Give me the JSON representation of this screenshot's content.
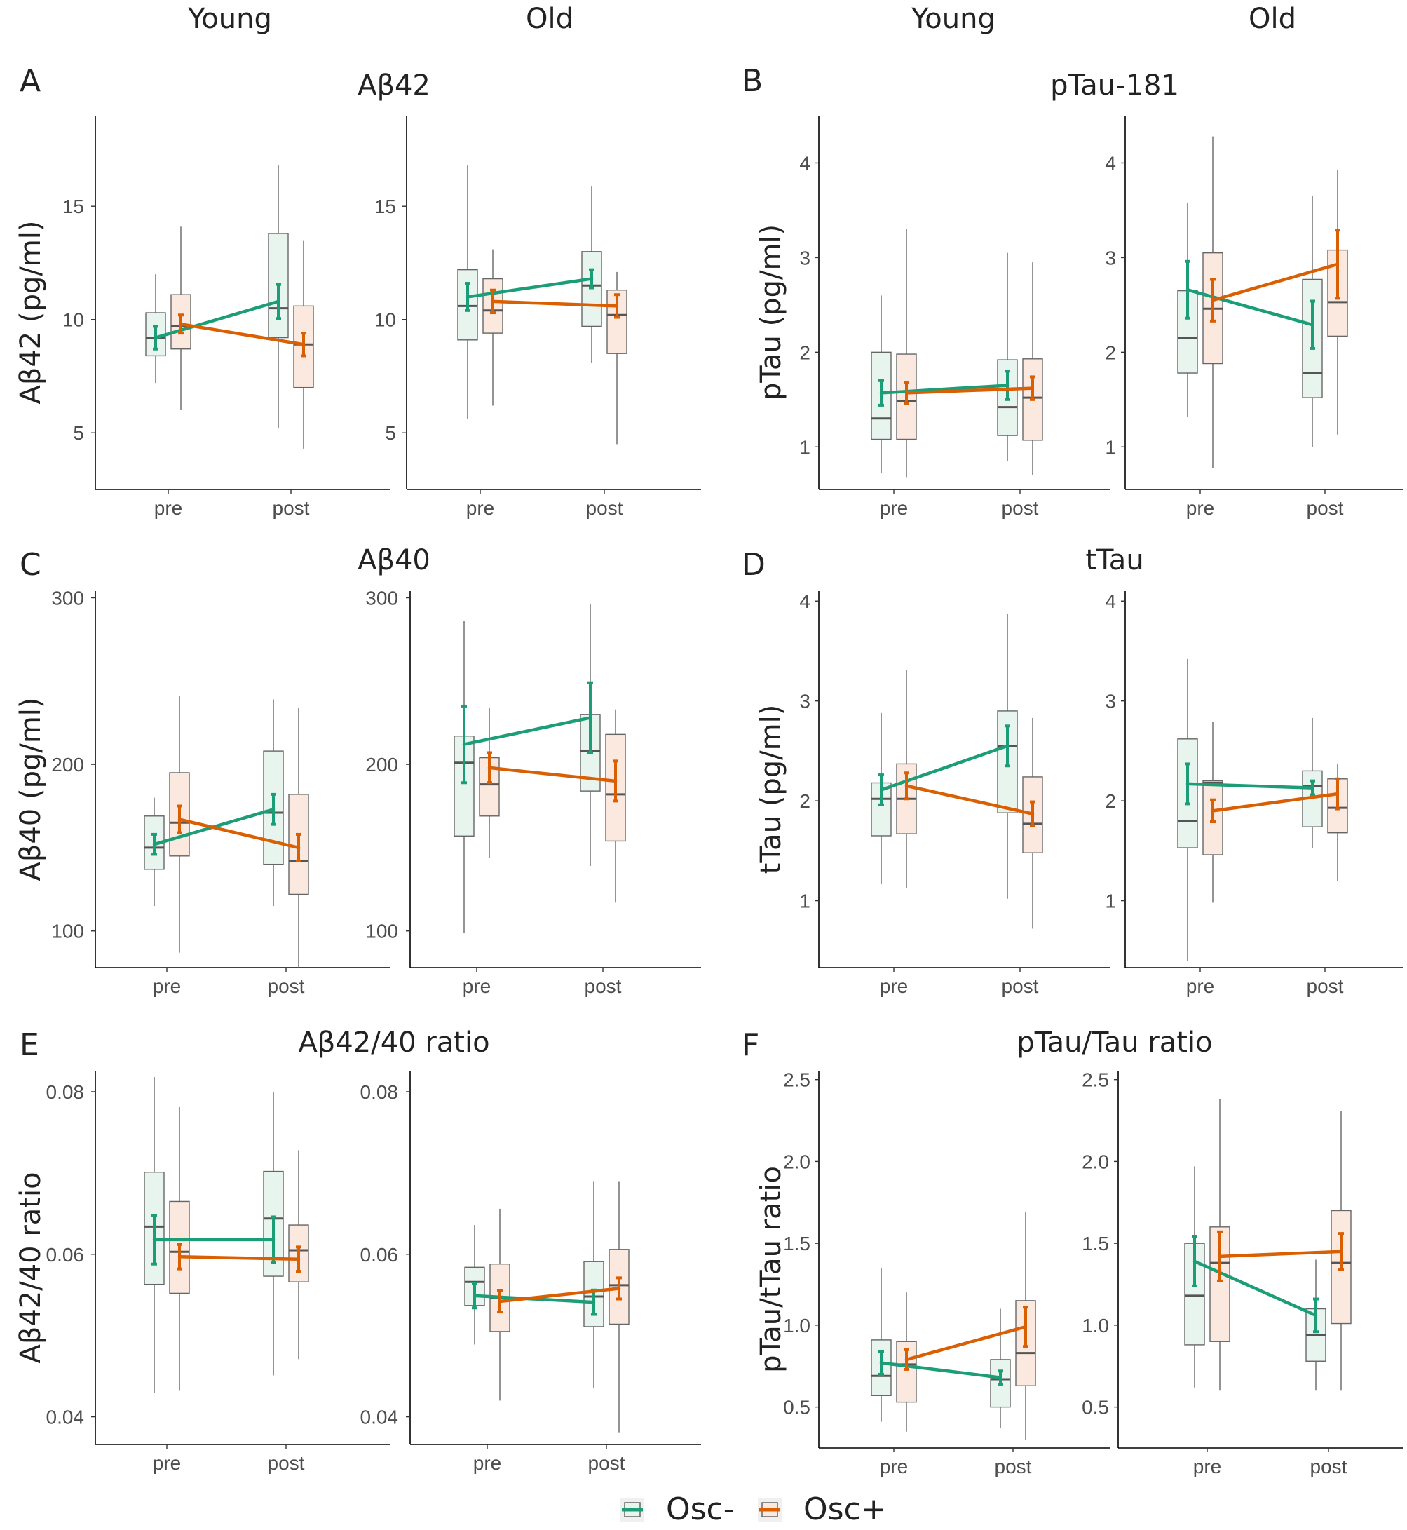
{
  "column_headers": [
    "Young",
    "Old",
    "Young",
    "Old"
  ],
  "colors": {
    "osc_minus": "#1b9e77",
    "osc_plus": "#d95f02",
    "box_minus_fill": "#e8f5ef",
    "box_plus_fill": "#fbe9df",
    "axis": "#000000",
    "box_stroke": "#666666"
  },
  "legend": [
    {
      "label": "Osc-",
      "color": "#1b9e77"
    },
    {
      "label": "Osc+",
      "color": "#d95f02"
    }
  ],
  "chart_data": [
    {
      "letter": "A",
      "title": "Aβ42",
      "type": "box+line",
      "ylabel": "Aβ42 (pg/ml)",
      "ylim": [
        2.5,
        19
      ],
      "yticks": [
        5,
        10,
        15
      ],
      "categories": [
        "pre",
        "post"
      ],
      "panels": [
        {
          "group": "Young",
          "boxes": {
            "Osc-": [
              {
                "lo": 7.2,
                "q1": 8.4,
                "med": 9.2,
                "q3": 10.3,
                "hi": 12.0
              },
              {
                "lo": 5.2,
                "q1": 9.2,
                "med": 10.5,
                "q3": 13.8,
                "hi": 16.8
              }
            ],
            "Osc+": [
              {
                "lo": 6.0,
                "q1": 8.7,
                "med": 9.7,
                "q3": 11.1,
                "hi": 14.1
              },
              {
                "lo": 4.3,
                "q1": 7.0,
                "med": 8.9,
                "q3": 10.6,
                "hi": 13.5
              }
            ]
          },
          "means": {
            "Osc-": [
              9.2,
              10.8
            ],
            "Osc+": [
              9.8,
              8.9
            ]
          },
          "se": {
            "Osc-": [
              0.5,
              0.75
            ],
            "Osc+": [
              0.4,
              0.5
            ]
          }
        },
        {
          "group": "Old",
          "boxes": {
            "Osc-": [
              {
                "lo": 5.6,
                "q1": 9.1,
                "med": 10.6,
                "q3": 12.2,
                "hi": 16.8
              },
              {
                "lo": 8.1,
                "q1": 9.7,
                "med": 11.5,
                "q3": 13.0,
                "hi": 15.9
              }
            ],
            "Osc+": [
              {
                "lo": 6.2,
                "q1": 9.4,
                "med": 10.4,
                "q3": 11.8,
                "hi": 13.1
              },
              {
                "lo": 4.5,
                "q1": 8.5,
                "med": 10.2,
                "q3": 11.3,
                "hi": 12.1
              }
            ]
          },
          "means": {
            "Osc-": [
              11.0,
              11.8
            ],
            "Osc+": [
              10.8,
              10.6
            ]
          },
          "se": {
            "Osc-": [
              0.6,
              0.4
            ],
            "Osc+": [
              0.5,
              0.5
            ]
          }
        }
      ]
    },
    {
      "letter": "B",
      "title": "pTau-181",
      "type": "box+line",
      "ylabel": "pTau (pg/ml)",
      "ylim": [
        0.55,
        4.5
      ],
      "yticks": [
        1,
        2,
        3,
        4
      ],
      "categories": [
        "pre",
        "post"
      ],
      "panels": [
        {
          "group": "Young",
          "boxes": {
            "Osc-": [
              {
                "lo": 0.72,
                "q1": 1.08,
                "med": 1.3,
                "q3": 2.0,
                "hi": 2.6
              },
              {
                "lo": 0.85,
                "q1": 1.12,
                "med": 1.42,
                "q3": 1.92,
                "hi": 3.05
              }
            ],
            "Osc+": [
              {
                "lo": 0.68,
                "q1": 1.08,
                "med": 1.48,
                "q3": 1.98,
                "hi": 3.3
              },
              {
                "lo": 0.7,
                "q1": 1.07,
                "med": 1.52,
                "q3": 1.93,
                "hi": 2.95
              }
            ]
          },
          "means": {
            "Osc-": [
              1.57,
              1.65
            ],
            "Osc+": [
              1.57,
              1.62
            ]
          },
          "se": {
            "Osc-": [
              0.13,
              0.15
            ],
            "Osc+": [
              0.11,
              0.12
            ]
          }
        },
        {
          "group": "Old",
          "boxes": {
            "Osc-": [
              {
                "lo": 1.32,
                "q1": 1.78,
                "med": 2.15,
                "q3": 2.65,
                "hi": 3.58
              },
              {
                "lo": 1.0,
                "q1": 1.52,
                "med": 1.78,
                "q3": 2.77,
                "hi": 3.65
              }
            ],
            "Osc+": [
              {
                "lo": 0.78,
                "q1": 1.88,
                "med": 2.46,
                "q3": 3.05,
                "hi": 4.28
              },
              {
                "lo": 1.13,
                "q1": 2.17,
                "med": 2.53,
                "q3": 3.08,
                "hi": 3.93
              }
            ]
          },
          "means": {
            "Osc-": [
              2.66,
              2.29
            ],
            "Osc+": [
              2.55,
              2.93
            ]
          },
          "se": {
            "Osc-": [
              0.3,
              0.25
            ],
            "Osc+": [
              0.22,
              0.36
            ]
          }
        }
      ]
    },
    {
      "letter": "C",
      "title": "Aβ40",
      "type": "box+line",
      "ylabel": "Aβ40 (pg/ml)",
      "ylim": [
        78,
        304
      ],
      "yticks": [
        100,
        200,
        300
      ],
      "categories": [
        "pre",
        "post"
      ],
      "panels": [
        {
          "group": "Young",
          "boxes": {
            "Osc-": [
              {
                "lo": 115,
                "q1": 137,
                "med": 150,
                "q3": 169,
                "hi": 180
              },
              {
                "lo": 115,
                "q1": 140,
                "med": 171,
                "q3": 208,
                "hi": 239
              }
            ],
            "Osc+": [
              {
                "lo": 87,
                "q1": 145,
                "med": 165,
                "q3": 195,
                "hi": 241
              },
              {
                "lo": 78,
                "q1": 122,
                "med": 142,
                "q3": 182,
                "hi": 234
              }
            ]
          },
          "means": {
            "Osc-": [
              152,
              173
            ],
            "Osc+": [
              167,
              150
            ]
          },
          "se": {
            "Osc-": [
              6,
              9
            ],
            "Osc+": [
              8,
              8
            ]
          }
        },
        {
          "group": "Old",
          "boxes": {
            "Osc-": [
              {
                "lo": 99,
                "q1": 157,
                "med": 201,
                "q3": 217,
                "hi": 286
              },
              {
                "lo": 139,
                "q1": 184,
                "med": 208,
                "q3": 230,
                "hi": 296
              }
            ],
            "Osc+": [
              {
                "lo": 144,
                "q1": 169,
                "med": 188,
                "q3": 204,
                "hi": 234
              },
              {
                "lo": 117,
                "q1": 154,
                "med": 182,
                "q3": 218,
                "hi": 233
              }
            ]
          },
          "means": {
            "Osc-": [
              212,
              228
            ],
            "Osc+": [
              198,
              190
            ]
          },
          "se": {
            "Osc-": [
              23,
              21
            ],
            "Osc+": [
              9,
              12
            ]
          }
        }
      ]
    },
    {
      "letter": "D",
      "title": "tTau",
      "type": "box+line",
      "ylabel": "tTau (pg/ml)",
      "ylim": [
        0.33,
        4.1
      ],
      "yticks": [
        1,
        2,
        3,
        4
      ],
      "categories": [
        "pre",
        "post"
      ],
      "panels": [
        {
          "group": "Young",
          "boxes": {
            "Osc-": [
              {
                "lo": 1.17,
                "q1": 1.65,
                "med": 2.02,
                "q3": 2.18,
                "hi": 2.88
              },
              {
                "lo": 1.02,
                "q1": 1.88,
                "med": 2.55,
                "q3": 2.9,
                "hi": 3.87
              }
            ],
            "Osc+": [
              {
                "lo": 1.13,
                "q1": 1.67,
                "med": 2.02,
                "q3": 2.37,
                "hi": 3.31
              },
              {
                "lo": 0.72,
                "q1": 1.48,
                "med": 1.77,
                "q3": 2.24,
                "hi": 2.83
              }
            ]
          },
          "means": {
            "Osc-": [
              2.11,
              2.55
            ],
            "Osc+": [
              2.15,
              1.87
            ]
          },
          "se": {
            "Osc-": [
              0.15,
              0.2
            ],
            "Osc+": [
              0.13,
              0.12
            ]
          }
        },
        {
          "group": "Old",
          "boxes": {
            "Osc-": [
              {
                "lo": 0.4,
                "q1": 1.53,
                "med": 1.8,
                "q3": 2.62,
                "hi": 3.42
              },
              {
                "lo": 1.53,
                "q1": 1.74,
                "med": 2.15,
                "q3": 2.3,
                "hi": 2.83
              }
            ],
            "Osc+": [
              {
                "lo": 0.98,
                "q1": 1.46,
                "med": 2.18,
                "q3": 2.2,
                "hi": 2.79
              },
              {
                "lo": 1.2,
                "q1": 1.68,
                "med": 1.93,
                "q3": 2.22,
                "hi": 2.37
              }
            ]
          },
          "means": {
            "Osc-": [
              2.17,
              2.13
            ],
            "Osc+": [
              1.9,
              2.07
            ]
          },
          "se": {
            "Osc-": [
              0.2,
              0.07
            ],
            "Osc+": [
              0.11,
              0.15
            ]
          }
        }
      ]
    },
    {
      "letter": "E",
      "title": "Aβ42/40 ratio",
      "type": "box+line",
      "ylabel": "Aβ42/40 ratio",
      "ylim": [
        0.0366,
        0.0825
      ],
      "yticks": [
        "0.04",
        "0.06",
        "0.08"
      ],
      "categories": [
        "pre",
        "post"
      ],
      "panels": [
        {
          "group": "Young",
          "boxes": {
            "Osc-": [
              {
                "lo": 0.0429,
                "q1": 0.0563,
                "med": 0.0634,
                "q3": 0.0701,
                "hi": 0.0818
              },
              {
                "lo": 0.0451,
                "q1": 0.0573,
                "med": 0.0644,
                "q3": 0.0702,
                "hi": 0.08
              }
            ],
            "Osc+": [
              {
                "lo": 0.0432,
                "q1": 0.0552,
                "med": 0.0603,
                "q3": 0.0665,
                "hi": 0.0781
              },
              {
                "lo": 0.0471,
                "q1": 0.0566,
                "med": 0.0605,
                "q3": 0.0636,
                "hi": 0.0728
              }
            ]
          },
          "means": {
            "Osc-": [
              0.0618,
              0.0618
            ],
            "Osc+": [
              0.0597,
              0.0594
            ]
          },
          "se": {
            "Osc-": [
              0.003,
              0.0028
            ],
            "Osc+": [
              0.0015,
              0.0015
            ]
          }
        },
        {
          "group": "Old",
          "boxes": {
            "Osc-": [
              {
                "lo": 0.0489,
                "q1": 0.0537,
                "med": 0.0566,
                "q3": 0.0584,
                "hi": 0.0636
              },
              {
                "lo": 0.0435,
                "q1": 0.0511,
                "med": 0.0548,
                "q3": 0.0591,
                "hi": 0.069
              }
            ],
            "Osc+": [
              {
                "lo": 0.042,
                "q1": 0.0505,
                "med": 0.0546,
                "q3": 0.0588,
                "hi": 0.0656
              },
              {
                "lo": 0.0381,
                "q1": 0.0514,
                "med": 0.0562,
                "q3": 0.0606,
                "hi": 0.069
              }
            ]
          },
          "means": {
            "Osc-": [
              0.0549,
              0.0541
            ],
            "Osc+": [
              0.0542,
              0.0558
            ]
          },
          "se": {
            "Osc-": [
              0.0015,
              0.0015
            ],
            "Osc+": [
              0.0013,
              0.0013
            ]
          }
        }
      ]
    },
    {
      "letter": "F",
      "title": "pTau/Tau ratio",
      "type": "box+line",
      "ylabel": "pTau/tTau ratio",
      "ylim": [
        0.25,
        2.55
      ],
      "yticks": [
        "0.5",
        "1.0",
        "1.5",
        "2.0",
        "2.5"
      ],
      "categories": [
        "pre",
        "post"
      ],
      "panels": [
        {
          "group": "Young",
          "boxes": {
            "Osc-": [
              {
                "lo": 0.41,
                "q1": 0.57,
                "med": 0.69,
                "q3": 0.91,
                "hi": 1.35
              },
              {
                "lo": 0.37,
                "q1": 0.5,
                "med": 0.67,
                "q3": 0.79,
                "hi": 1.1
              }
            ],
            "Osc+": [
              {
                "lo": 0.35,
                "q1": 0.53,
                "med": 0.76,
                "q3": 0.9,
                "hi": 1.2
              },
              {
                "lo": 0.3,
                "q1": 0.63,
                "med": 0.83,
                "q3": 1.15,
                "hi": 1.69
              }
            ]
          },
          "means": {
            "Osc-": [
              0.77,
              0.68
            ],
            "Osc+": [
              0.79,
              0.99
            ]
          },
          "se": {
            "Osc-": [
              0.07,
              0.04
            ],
            "Osc+": [
              0.06,
              0.12
            ]
          }
        },
        {
          "group": "Old",
          "boxes": {
            "Osc-": [
              {
                "lo": 0.62,
                "q1": 0.88,
                "med": 1.18,
                "q3": 1.5,
                "hi": 1.97
              },
              {
                "lo": 0.6,
                "q1": 0.78,
                "med": 0.94,
                "q3": 1.1,
                "hi": 1.4
              }
            ],
            "Osc+": [
              {
                "lo": 0.6,
                "q1": 0.9,
                "med": 1.38,
                "q3": 1.6,
                "hi": 2.38
              },
              {
                "lo": 0.6,
                "q1": 1.01,
                "med": 1.38,
                "q3": 1.7,
                "hi": 2.31
              }
            ]
          },
          "means": {
            "Osc-": [
              1.39,
              1.06
            ],
            "Osc+": [
              1.42,
              1.45
            ]
          },
          "se": {
            "Osc-": [
              0.15,
              0.1
            ],
            "Osc+": [
              0.15,
              0.11
            ]
          }
        }
      ]
    }
  ]
}
